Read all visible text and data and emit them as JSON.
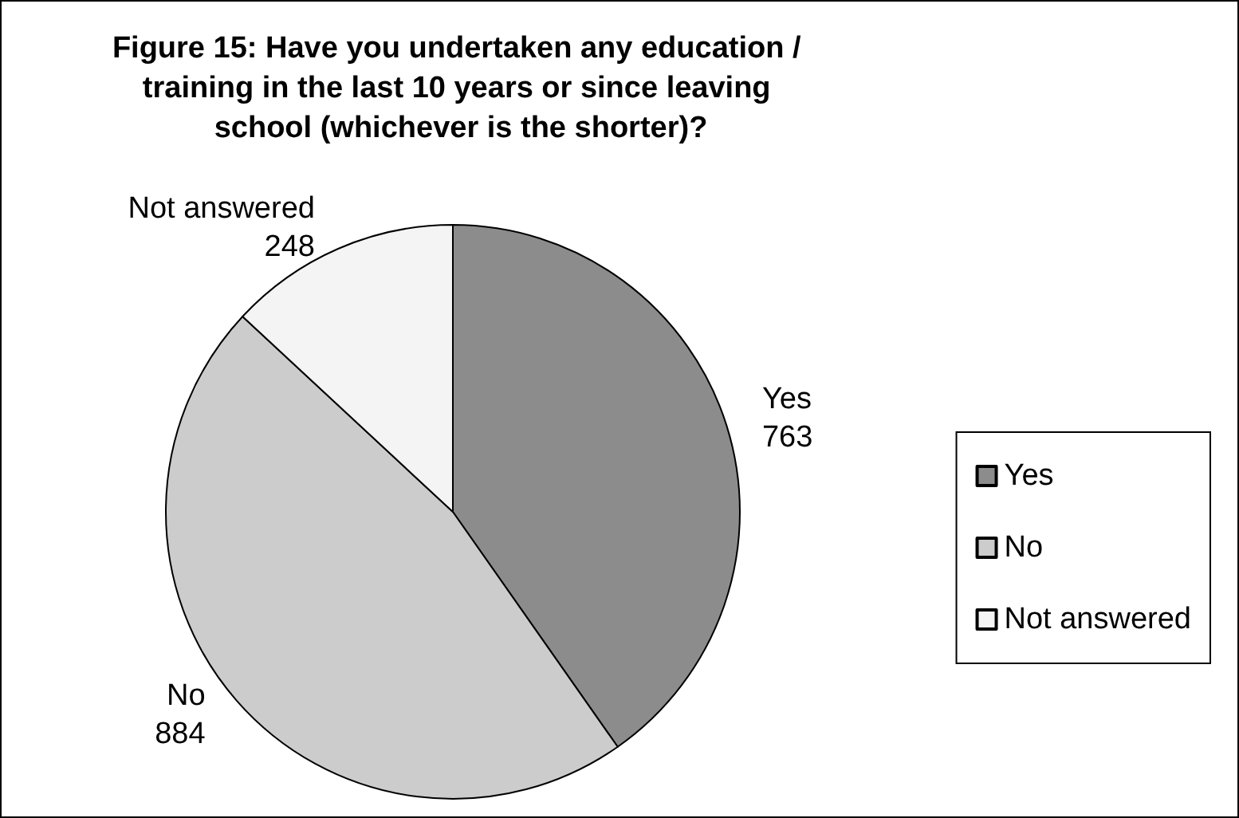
{
  "chart_data": {
    "type": "pie",
    "title": "Figure 15: Have you undertaken any education / training in the last 10 years or since leaving school (whichever is the shorter)?",
    "categories": [
      "Yes",
      "No",
      "Not answered"
    ],
    "values": [
      763,
      884,
      248
    ],
    "colors": [
      "#8c8c8c",
      "#cccccc",
      "#f4f4f4"
    ],
    "data_labels": true,
    "legend": "right"
  }
}
